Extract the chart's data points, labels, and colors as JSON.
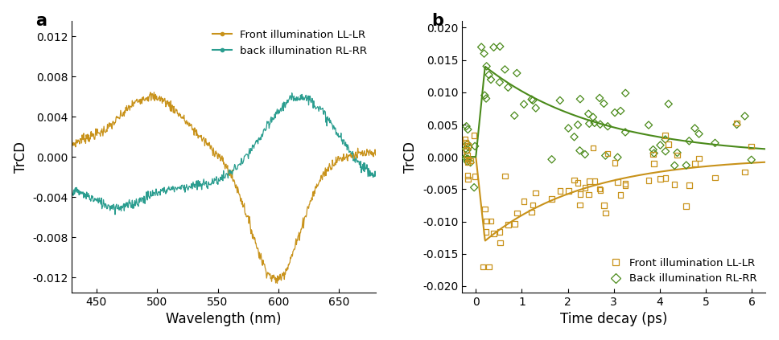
{
  "panel_a": {
    "gold_color": "#C8921A",
    "teal_color": "#2A9D8F",
    "xlabel": "Wavelength (nm)",
    "ylabel": "TrCD",
    "xlim": [
      430,
      680
    ],
    "ylim": [
      -0.0135,
      0.0135
    ],
    "yticks": [
      -0.012,
      -0.008,
      -0.004,
      0.0,
      0.004,
      0.008,
      0.012
    ],
    "xticks": [
      450,
      500,
      550,
      600,
      650
    ],
    "legend": [
      "Front illumination LL-LR",
      "back illumination RL-RR"
    ]
  },
  "panel_b": {
    "gold_color": "#C8921A",
    "green_color": "#4A8A1A",
    "xlabel": "Time decay (ps)",
    "ylabel": "TrCD",
    "xlim": [
      -0.3,
      6.3
    ],
    "ylim": [
      -0.021,
      0.021
    ],
    "yticks": [
      -0.02,
      -0.015,
      -0.01,
      -0.005,
      0.0,
      0.005,
      0.01,
      0.015,
      0.02
    ],
    "xticks": [
      0,
      1,
      2,
      3,
      4,
      5,
      6
    ],
    "legend": [
      "Front illumination LL-LR",
      "Back illumination RL-RR"
    ]
  },
  "label_fontsize": 12,
  "tick_fontsize": 10,
  "legend_fontsize": 9.5,
  "panel_label_fontsize": 15
}
